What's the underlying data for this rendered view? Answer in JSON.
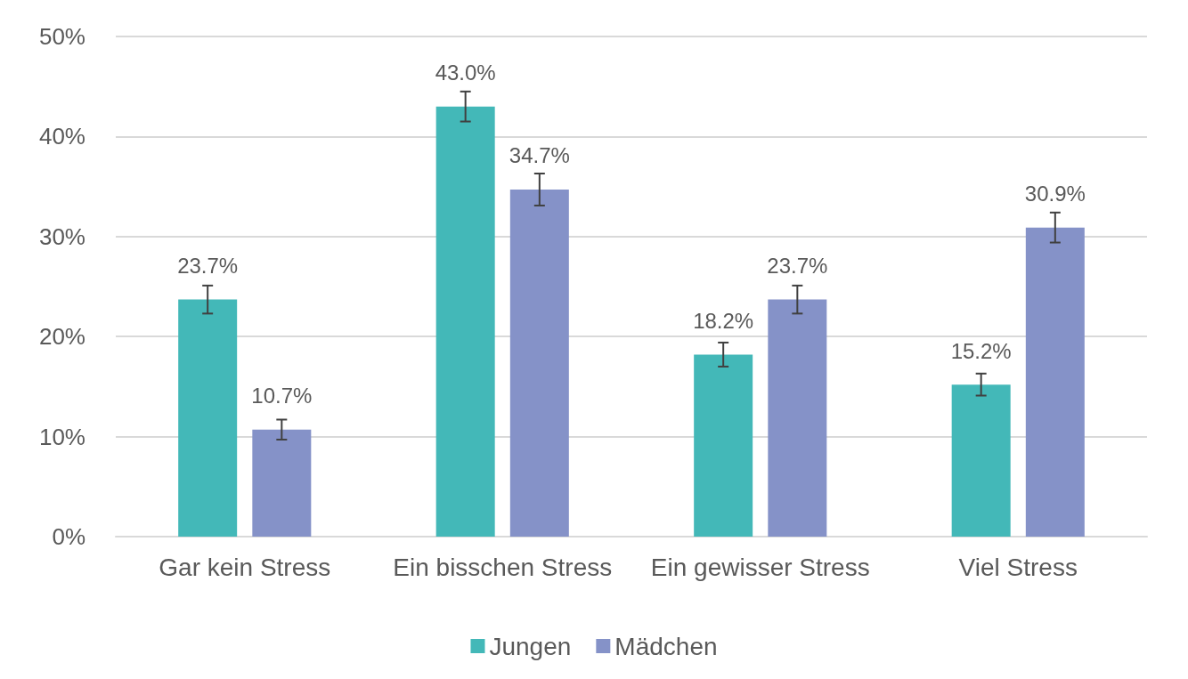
{
  "chart_data": {
    "type": "bar",
    "categories": [
      "Gar kein Stress",
      "Ein bisschen Stress",
      "Ein gewisser Stress",
      "Viel Stress"
    ],
    "series": [
      {
        "name": "Jungen",
        "color": "#43b8b8",
        "values": [
          23.7,
          43.0,
          18.2,
          15.2
        ],
        "errors": [
          1.4,
          1.5,
          1.2,
          1.1
        ],
        "value_labels": [
          "23.7%",
          "43.0%",
          "18.2%",
          "15.2%"
        ]
      },
      {
        "name": "Mädchen",
        "color": "#8592c8",
        "values": [
          10.7,
          34.7,
          23.7,
          30.9
        ],
        "errors": [
          1.0,
          1.6,
          1.4,
          1.5
        ],
        "value_labels": [
          "10.7%",
          "34.7%",
          "23.7%",
          "30.9%"
        ]
      }
    ],
    "ylim": [
      0,
      50
    ],
    "yticks": [
      {
        "value": 0,
        "label": "0%"
      },
      {
        "value": 10,
        "label": "10%"
      },
      {
        "value": 20,
        "label": "20%"
      },
      {
        "value": 30,
        "label": "30%"
      },
      {
        "value": 40,
        "label": "40%"
      },
      {
        "value": 50,
        "label": "50%"
      }
    ],
    "grid": "y",
    "legend": "bottom"
  }
}
